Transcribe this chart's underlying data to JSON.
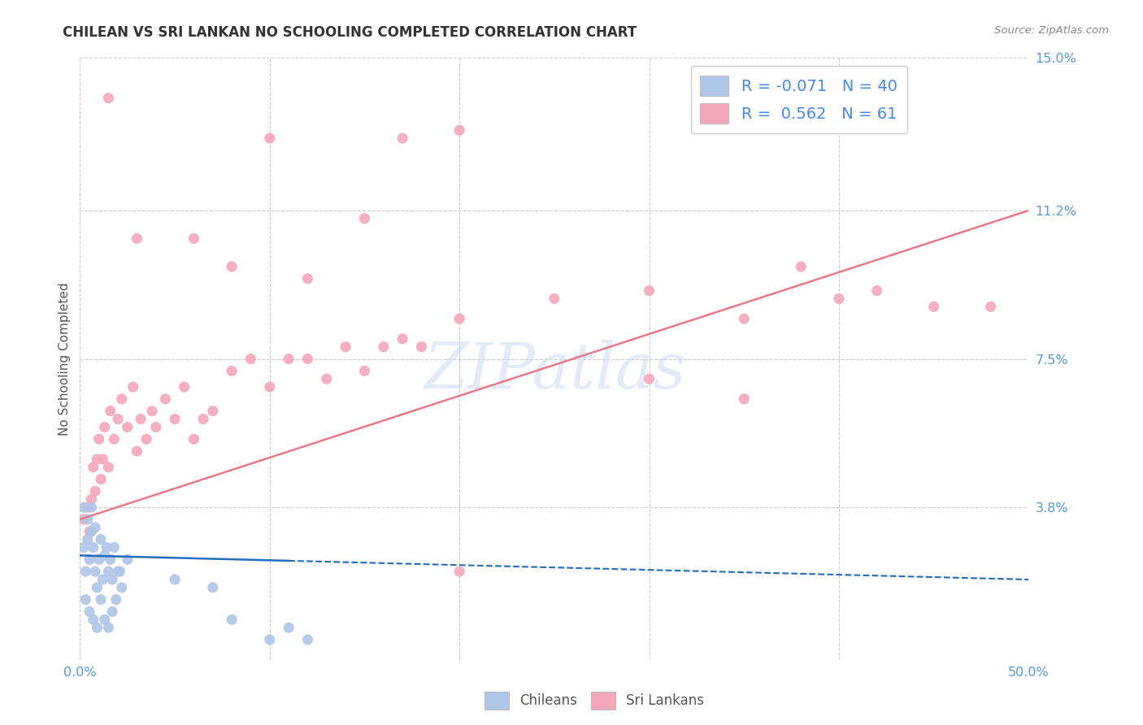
{
  "title": "CHILEAN VS SRI LANKAN NO SCHOOLING COMPLETED CORRELATION CHART",
  "source": "Source: ZipAtlas.com",
  "ylabel": "No Schooling Completed",
  "xlim": [
    0.0,
    0.5
  ],
  "ylim": [
    0.0,
    0.15
  ],
  "yticks": [
    0.0,
    0.038,
    0.075,
    0.112,
    0.15
  ],
  "ytick_labels": [
    "",
    "3.8%",
    "7.5%",
    "11.2%",
    "15.0%"
  ],
  "xtick_labels_show": [
    "0.0%",
    "50.0%"
  ],
  "xtick_positions_show": [
    0.0,
    0.5
  ],
  "xtick_positions_all": [
    0.0,
    0.1,
    0.2,
    0.3,
    0.4,
    0.5
  ],
  "chilean_color": "#aec6e8",
  "srilanka_color": "#f4a7b9",
  "chilean_line_color": "#1f6dbf",
  "srilanka_line_color": "#e8788a",
  "chilean_R": -0.071,
  "chilean_N": 40,
  "srilanka_R": 0.562,
  "srilanka_N": 61,
  "background_color": "#ffffff",
  "grid_color": "#cccccc",
  "watermark": "ZIPatlas",
  "legend_label_chilean": "Chileans",
  "legend_label_srilanka": "Sri Lankans",
  "chilean_line": {
    "x0": 0.0,
    "y0": 0.026,
    "x1": 0.5,
    "y1": 0.02,
    "solid_end": 0.11
  },
  "srilanka_line": {
    "x0": 0.0,
    "y0": 0.035,
    "x1": 0.5,
    "y1": 0.112
  },
  "chilean_points": [
    [
      0.002,
      0.028
    ],
    [
      0.003,
      0.022
    ],
    [
      0.004,
      0.03
    ],
    [
      0.005,
      0.025
    ],
    [
      0.006,
      0.032
    ],
    [
      0.007,
      0.028
    ],
    [
      0.008,
      0.022
    ],
    [
      0.009,
      0.018
    ],
    [
      0.01,
      0.025
    ],
    [
      0.011,
      0.03
    ],
    [
      0.012,
      0.02
    ],
    [
      0.013,
      0.026
    ],
    [
      0.014,
      0.028
    ],
    [
      0.015,
      0.022
    ],
    [
      0.016,
      0.025
    ],
    [
      0.017,
      0.02
    ],
    [
      0.018,
      0.028
    ],
    [
      0.02,
      0.022
    ],
    [
      0.022,
      0.018
    ],
    [
      0.025,
      0.025
    ],
    [
      0.003,
      0.015
    ],
    [
      0.005,
      0.012
    ],
    [
      0.007,
      0.01
    ],
    [
      0.009,
      0.008
    ],
    [
      0.011,
      0.015
    ],
    [
      0.013,
      0.01
    ],
    [
      0.015,
      0.008
    ],
    [
      0.017,
      0.012
    ],
    [
      0.019,
      0.015
    ],
    [
      0.021,
      0.022
    ],
    [
      0.002,
      0.038
    ],
    [
      0.004,
      0.035
    ],
    [
      0.006,
      0.038
    ],
    [
      0.008,
      0.033
    ],
    [
      0.05,
      0.02
    ],
    [
      0.07,
      0.018
    ],
    [
      0.08,
      0.01
    ],
    [
      0.1,
      0.005
    ],
    [
      0.11,
      0.008
    ],
    [
      0.12,
      0.005
    ]
  ],
  "srilanka_points": [
    [
      0.002,
      0.035
    ],
    [
      0.004,
      0.038
    ],
    [
      0.005,
      0.032
    ],
    [
      0.006,
      0.04
    ],
    [
      0.007,
      0.048
    ],
    [
      0.008,
      0.042
    ],
    [
      0.009,
      0.05
    ],
    [
      0.01,
      0.055
    ],
    [
      0.011,
      0.045
    ],
    [
      0.012,
      0.05
    ],
    [
      0.013,
      0.058
    ],
    [
      0.015,
      0.048
    ],
    [
      0.016,
      0.062
    ],
    [
      0.018,
      0.055
    ],
    [
      0.02,
      0.06
    ],
    [
      0.022,
      0.065
    ],
    [
      0.025,
      0.058
    ],
    [
      0.028,
      0.068
    ],
    [
      0.03,
      0.052
    ],
    [
      0.032,
      0.06
    ],
    [
      0.035,
      0.055
    ],
    [
      0.038,
      0.062
    ],
    [
      0.04,
      0.058
    ],
    [
      0.045,
      0.065
    ],
    [
      0.05,
      0.06
    ],
    [
      0.055,
      0.068
    ],
    [
      0.06,
      0.055
    ],
    [
      0.065,
      0.06
    ],
    [
      0.07,
      0.062
    ],
    [
      0.08,
      0.072
    ],
    [
      0.09,
      0.075
    ],
    [
      0.1,
      0.068
    ],
    [
      0.11,
      0.075
    ],
    [
      0.12,
      0.075
    ],
    [
      0.13,
      0.07
    ],
    [
      0.14,
      0.078
    ],
    [
      0.15,
      0.072
    ],
    [
      0.16,
      0.078
    ],
    [
      0.17,
      0.08
    ],
    [
      0.18,
      0.078
    ],
    [
      0.2,
      0.085
    ],
    [
      0.25,
      0.09
    ],
    [
      0.3,
      0.092
    ],
    [
      0.35,
      0.085
    ],
    [
      0.38,
      0.098
    ],
    [
      0.4,
      0.09
    ],
    [
      0.42,
      0.092
    ],
    [
      0.45,
      0.088
    ],
    [
      0.2,
      0.022
    ],
    [
      0.1,
      0.13
    ],
    [
      0.15,
      0.11
    ],
    [
      0.2,
      0.132
    ],
    [
      0.06,
      0.105
    ],
    [
      0.08,
      0.098
    ],
    [
      0.12,
      0.095
    ],
    [
      0.015,
      0.14
    ],
    [
      0.3,
      0.07
    ],
    [
      0.35,
      0.065
    ],
    [
      0.03,
      0.105
    ],
    [
      0.17,
      0.13
    ],
    [
      0.48,
      0.088
    ]
  ]
}
